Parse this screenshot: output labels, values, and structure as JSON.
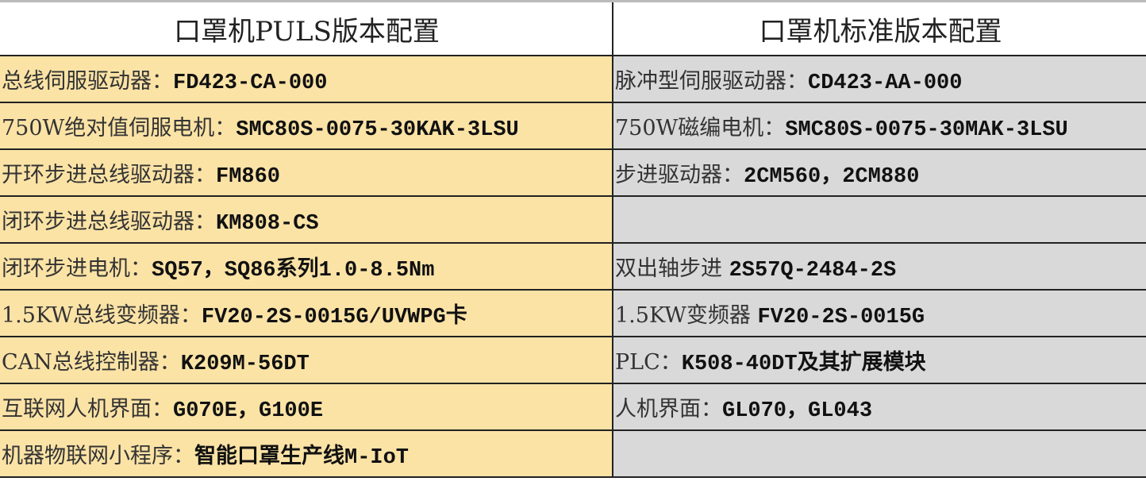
{
  "headers": [
    "口罩机PULS版本配置",
    "口罩机标准版本配置"
  ],
  "colors": {
    "left_fill": "#fbe3a6",
    "right_fill": "#d9d9d9",
    "border": "#222222"
  },
  "rows": [
    {
      "left": {
        "label": "总线伺服驱动器：",
        "value": "FD423-CA-000"
      },
      "right": {
        "label": "脉冲型伺服驱动器：",
        "value": "CD423-AA-000"
      }
    },
    {
      "left": {
        "label": "750W绝对值伺服电机：",
        "value": "SMC80S-0075-30KAK-3LSU"
      },
      "right": {
        "label": "750W磁编电机：",
        "value": "SMC80S-0075-30MAK-3LSU"
      }
    },
    {
      "left": {
        "label": "开环步进总线驱动器：",
        "value": "FM860"
      },
      "right": {
        "label": "步进驱动器：",
        "value": "2CM560，2CM880"
      }
    },
    {
      "left": {
        "label": "闭环步进总线驱动器：",
        "value": "KM808-CS"
      },
      "right": {
        "label": "",
        "value": ""
      }
    },
    {
      "left": {
        "label": "闭环步进电机：",
        "value": "SQ57，SQ86系列1.0-8.5Nm"
      },
      "right": {
        "label": "双出轴步进 ",
        "value": "2S57Q-2484-2S"
      }
    },
    {
      "left": {
        "label": "1.5KW总线变频器：",
        "value": "FV20-2S-0015G/UVWPG卡"
      },
      "right": {
        "label": "1.5KW变频器 ",
        "value": "FV20-2S-0015G"
      }
    },
    {
      "left": {
        "label": "CAN总线控制器：",
        "value": "K209M-56DT"
      },
      "right": {
        "label": "PLC：",
        "value": "K508-40DT及其扩展模块"
      }
    },
    {
      "left": {
        "label": "互联网人机界面：",
        "value": "G070E，G100E"
      },
      "right": {
        "label": "人机界面：",
        "value": "GL070，GL043"
      }
    },
    {
      "left": {
        "label": "机器物联网小程序：",
        "value": "智能口罩生产线M-IoT"
      },
      "right": {
        "label": "",
        "value": ""
      }
    }
  ]
}
